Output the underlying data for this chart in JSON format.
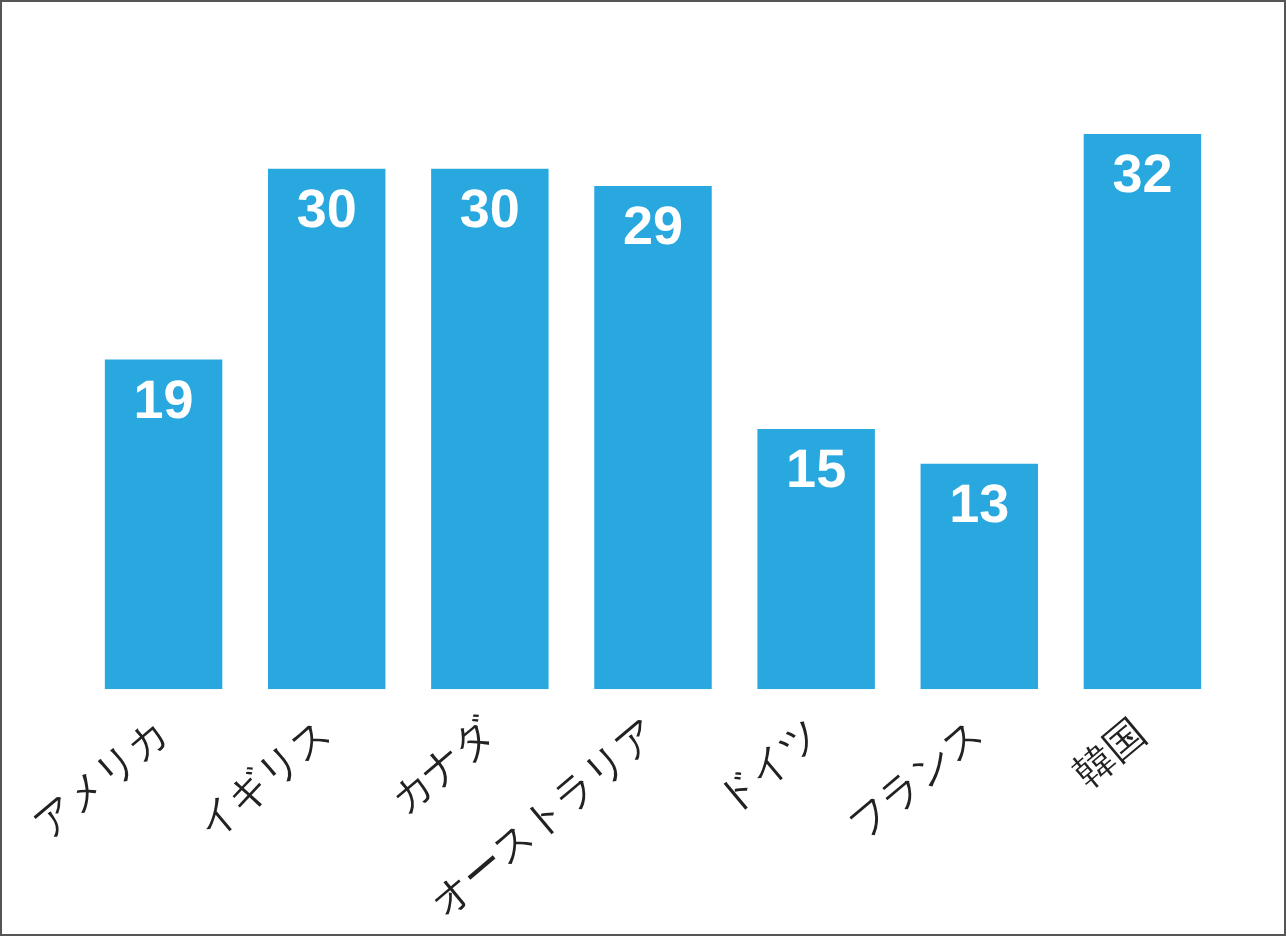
{
  "chart_data": {
    "type": "bar",
    "categories": [
      "アメリカ",
      "イギリス",
      "カナダ",
      "オーストラリア",
      "ドイツ",
      "フランス",
      "韓国"
    ],
    "values": [
      19,
      30,
      30,
      29,
      15,
      13,
      32
    ],
    "color": "#29a8e0",
    "data_labels": true
  }
}
